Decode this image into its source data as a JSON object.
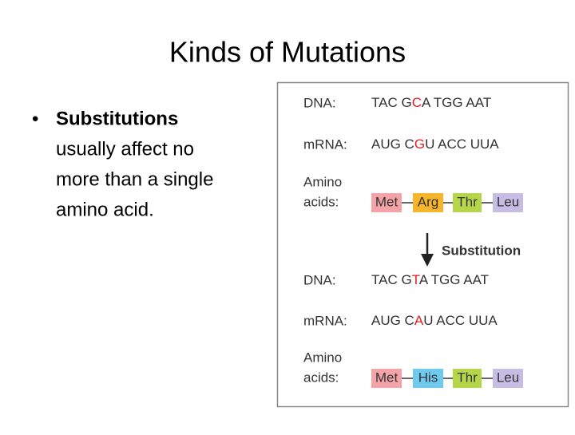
{
  "title": "Kinds of Mutations",
  "bullet": {
    "bold": "Substitutions",
    "lines": [
      "usually affect no",
      "more than a single",
      "amino acid."
    ]
  },
  "figure": {
    "before": {
      "dna_label": "DNA:",
      "dna": [
        "TAC G",
        "C",
        "A TGG AAT"
      ],
      "mrna_label": "mRNA:",
      "mrna": [
        "AUG C",
        "G",
        "U ACC UUA"
      ],
      "amino_label": [
        "Amino",
        "acids:"
      ],
      "amino": [
        "Met",
        "Arg",
        "Thr",
        "Leu"
      ]
    },
    "arrow_label": "Substitution",
    "after": {
      "dna_label": "DNA:",
      "dna": [
        "TAC G",
        "T",
        "A TGG AAT"
      ],
      "mrna_label": "mRNA:",
      "mrna": [
        "AUG C",
        "A",
        "U ACC UUA"
      ],
      "amino_label": [
        "Amino",
        "acids:"
      ],
      "amino": [
        "Met",
        "His",
        "Thr",
        "Leu"
      ]
    }
  }
}
